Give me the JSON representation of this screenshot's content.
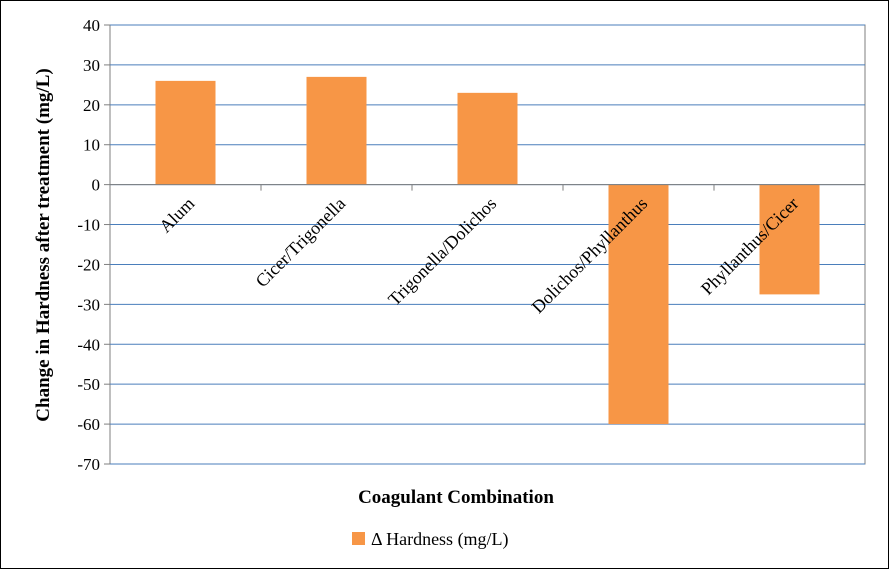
{
  "chart_data": {
    "type": "bar",
    "title": "",
    "xlabel": "Coagulant Combination",
    "ylabel": "Change in Hardness  after treatment (mg/L)",
    "categories": [
      "Alum",
      "Cicer/Trigonella",
      "Trigonella/Dolichos",
      "Dolichos/Phyllanthus",
      "Phyllanthus/Cicer"
    ],
    "series": [
      {
        "name": "Δ Hardness (mg/L)",
        "values": [
          26,
          27,
          23,
          -60,
          -27.5
        ],
        "color": "#F79646"
      }
    ],
    "ylim": [
      -70,
      40
    ],
    "yticks": [
      40,
      30,
      20,
      10,
      0,
      -10,
      -20,
      -30,
      -40,
      -50,
      -60,
      -70
    ],
    "grid": true,
    "legend": "bottom-center"
  }
}
